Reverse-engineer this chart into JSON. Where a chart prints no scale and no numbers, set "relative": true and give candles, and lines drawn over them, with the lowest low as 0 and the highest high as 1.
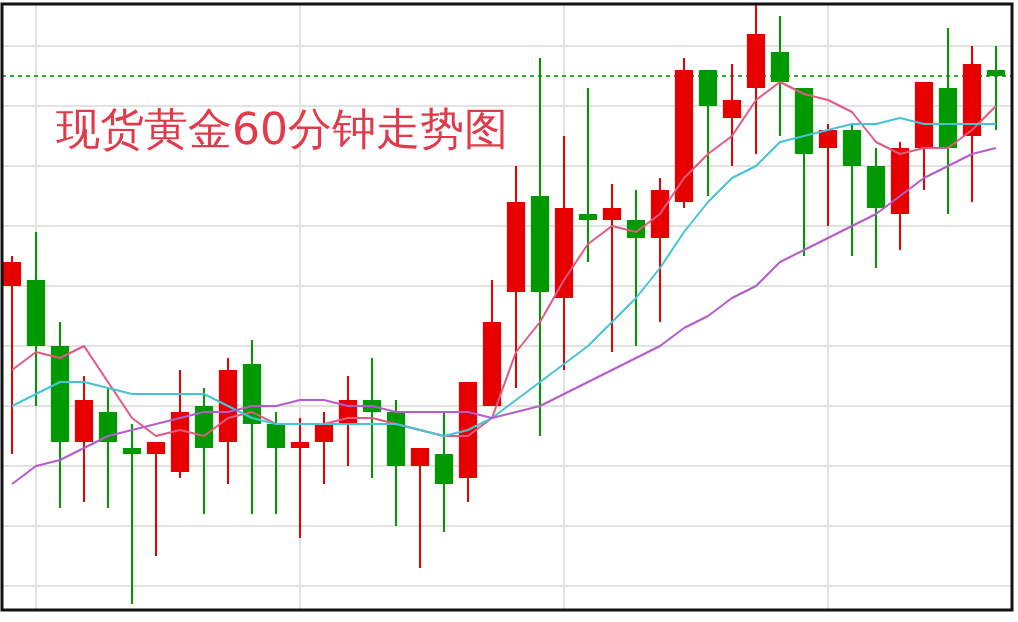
{
  "chart_data": {
    "type": "candlestick",
    "title": "现货黄金60分钟走势图",
    "relative": true,
    "grid": true,
    "categories": [
      null,
      null,
      null,
      null,
      null,
      null,
      null,
      null,
      null,
      null,
      null,
      null,
      null,
      null,
      null,
      null,
      null,
      null,
      null,
      null,
      null,
      null,
      null,
      null,
      null,
      null,
      null,
      null,
      null,
      null,
      null,
      null,
      null,
      null,
      null,
      null,
      null,
      null,
      null,
      null,
      null,
      null
    ],
    "ref_lines": [
      {
        "axis": "y",
        "value": 0.88,
        "color": "#33aa33",
        "line_style": "dotted"
      }
    ],
    "series": [
      {
        "type": "line",
        "color": "#e05a80",
        "values": [
          0.39,
          0.42,
          0.41,
          0.43,
          0.37,
          0.31,
          0.28,
          0.29,
          0.28,
          0.31,
          0.32,
          0.3,
          0.3,
          0.3,
          0.31,
          0.31,
          0.3,
          0.29,
          0.28,
          0.28,
          0.31,
          0.42,
          0.47,
          0.54,
          0.6,
          0.63,
          0.62,
          0.65,
          0.71,
          0.75,
          0.78,
          0.84,
          0.87,
          0.85,
          0.84,
          0.82,
          0.77,
          0.75,
          0.76,
          0.76,
          0.79,
          0.83
        ]
      },
      {
        "type": "line",
        "color": "#45c4d6",
        "values": [
          0.33,
          0.35,
          0.37,
          0.37,
          0.36,
          0.35,
          0.35,
          0.35,
          0.35,
          0.33,
          0.31,
          0.3,
          0.3,
          0.3,
          0.3,
          0.3,
          0.3,
          0.29,
          0.28,
          0.29,
          0.31,
          0.34,
          0.37,
          0.4,
          0.43,
          0.47,
          0.51,
          0.56,
          0.62,
          0.67,
          0.71,
          0.73,
          0.77,
          0.78,
          0.79,
          0.8,
          0.8,
          0.81,
          0.8,
          0.8,
          0.8,
          0.8
        ]
      },
      {
        "type": "line",
        "color": "#b55ccc",
        "values": [
          0.2,
          0.23,
          0.24,
          0.26,
          0.28,
          0.29,
          0.3,
          0.31,
          0.32,
          0.32,
          0.33,
          0.33,
          0.34,
          0.34,
          0.33,
          0.33,
          0.32,
          0.32,
          0.32,
          0.32,
          0.31,
          0.32,
          0.33,
          0.35,
          0.37,
          0.39,
          0.41,
          0.43,
          0.46,
          0.48,
          0.51,
          0.53,
          0.57,
          0.59,
          0.61,
          0.63,
          0.65,
          0.68,
          0.71,
          0.73,
          0.75,
          0.76
        ]
      },
      {
        "ohlc": [
          [
            0.53,
            0.58,
            0.25,
            0.57
          ],
          [
            0.54,
            0.62,
            0.33,
            0.43
          ],
          [
            0.43,
            0.47,
            0.16,
            0.27
          ],
          [
            0.27,
            0.38,
            0.17,
            0.34
          ],
          [
            0.32,
            0.36,
            0.16,
            0.27
          ],
          [
            0.26,
            0.3,
            0,
            0.25
          ],
          [
            0.25,
            0.27,
            0.08,
            0.27
          ],
          [
            0.22,
            0.39,
            0.21,
            0.32
          ],
          [
            0.33,
            0.36,
            0.15,
            0.26
          ],
          [
            0.27,
            0.41,
            0.2,
            0.39
          ],
          [
            0.4,
            0.44,
            0.15,
            0.3
          ],
          [
            0.3,
            0.32,
            0.15,
            0.26
          ],
          [
            0.26,
            0.31,
            0.11,
            0.27
          ],
          [
            0.27,
            0.32,
            0.2,
            0.3
          ],
          [
            0.3,
            0.38,
            0.23,
            0.34
          ],
          [
            0.34,
            0.41,
            0.21,
            0.32
          ],
          [
            0.32,
            0.34,
            0.13,
            0.23
          ],
          [
            0.23,
            0.26,
            0.06,
            0.26
          ],
          [
            0.25,
            0.32,
            0.12,
            0.2
          ],
          [
            0.21,
            0.37,
            0.17,
            0.37
          ],
          [
            0.33,
            0.54,
            0.33,
            0.47
          ],
          [
            0.52,
            0.73,
            0.36,
            0.67
          ],
          [
            0.68,
            0.91,
            0.28,
            0.52
          ],
          [
            0.51,
            0.78,
            0.39,
            0.66
          ],
          [
            0.65,
            0.86,
            0.57,
            0.64
          ],
          [
            0.64,
            0.7,
            0.42,
            0.66
          ],
          [
            0.64,
            0.69,
            0.43,
            0.61
          ],
          [
            0.61,
            0.71,
            0.47,
            0.69
          ],
          [
            0.67,
            0.91,
            0.66,
            0.89
          ],
          [
            0.89,
            0.89,
            0.68,
            0.83
          ],
          [
            0.81,
            0.9,
            0.73,
            0.84
          ],
          [
            0.86,
            1,
            0.75,
            0.95
          ],
          [
            0.92,
            0.98,
            0.78,
            0.87
          ],
          [
            0.86,
            0.86,
            0.58,
            0.75
          ],
          [
            0.76,
            0.8,
            0.63,
            0.79
          ],
          [
            0.79,
            0.8,
            0.58,
            0.73
          ],
          [
            0.73,
            0.76,
            0.56,
            0.66
          ],
          [
            0.65,
            0.77,
            0.59,
            0.76
          ],
          [
            0.76,
            0.87,
            0.69,
            0.87
          ],
          [
            0.86,
            0.96,
            0.65,
            0.76
          ],
          [
            0.78,
            0.93,
            0.67,
            0.9
          ],
          [
            0.89,
            0.93,
            0.79,
            0.88
          ]
        ],
        "colors": [
          "#e60000",
          "#009a00",
          "#009a00",
          "#e60000",
          "#009a00",
          "#009a00",
          "#e60000",
          "#e60000",
          "#009a00",
          "#e60000",
          "#009a00",
          "#009a00",
          "#e60000",
          "#e60000",
          "#e60000",
          "#009a00",
          "#009a00",
          "#e60000",
          "#009a00",
          "#e60000",
          "#e60000",
          "#e60000",
          "#009a00",
          "#e60000",
          "#009a00",
          "#e60000",
          "#009a00",
          "#e60000",
          "#e60000",
          "#009a00",
          "#e60000",
          "#e60000",
          "#009a00",
          "#009a00",
          "#e60000",
          "#009a00",
          "#009a00",
          "#e60000",
          "#e60000",
          "#009a00",
          "#e60000",
          "#009a00"
        ]
      }
    ]
  }
}
